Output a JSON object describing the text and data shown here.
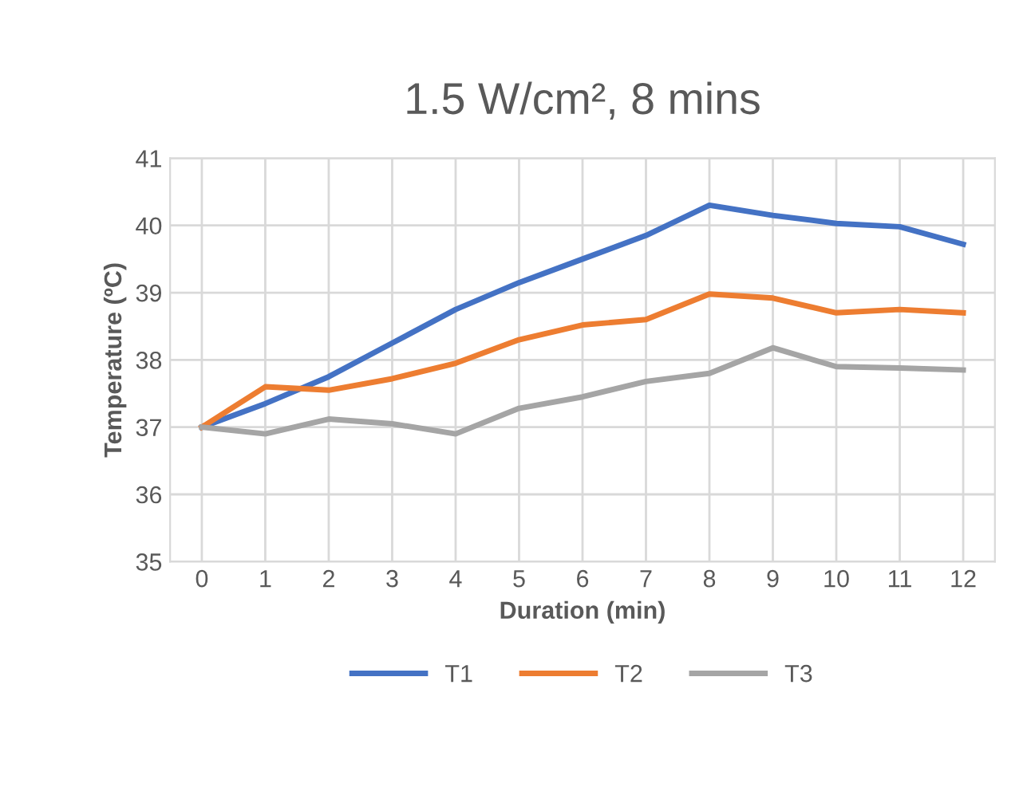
{
  "chart_data": {
    "type": "line",
    "title": "1.5 W/cm², 8 mins",
    "xlabel": "Duration (min)",
    "ylabel": "Temperature (ºC)",
    "categories": [
      "0",
      "1",
      "2",
      "3",
      "4",
      "5",
      "6",
      "7",
      "8",
      "9",
      "10",
      "11",
      "12"
    ],
    "series": [
      {
        "name": "T1",
        "color": "#4472c4",
        "values": [
          37.0,
          37.35,
          37.75,
          38.25,
          38.75,
          39.15,
          39.5,
          39.85,
          40.3,
          40.15,
          40.03,
          39.98,
          39.72
        ]
      },
      {
        "name": "T2",
        "color": "#ed7d31",
        "values": [
          37.0,
          37.6,
          37.55,
          37.72,
          37.95,
          38.3,
          38.52,
          38.6,
          38.98,
          38.92,
          38.7,
          38.75,
          38.7
        ]
      },
      {
        "name": "T3",
        "color": "#a5a5a5",
        "values": [
          37.0,
          36.9,
          37.12,
          37.05,
          36.9,
          37.28,
          37.45,
          37.68,
          37.8,
          38.18,
          37.9,
          37.88,
          37.85
        ]
      }
    ],
    "ylim": [
      35,
      41
    ],
    "yticks": [
      35,
      36,
      37,
      38,
      39,
      40,
      41
    ],
    "grid": true,
    "legend": "bottom",
    "marker": "none",
    "line_style": "solid"
  }
}
